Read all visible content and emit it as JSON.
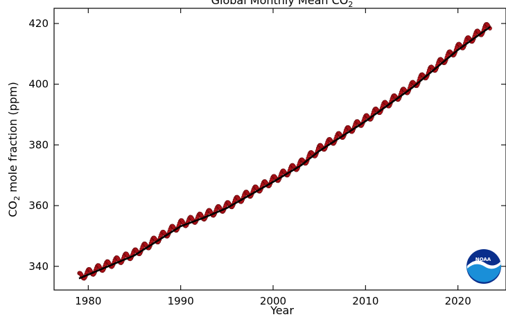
{
  "chart_data": {
    "type": "line",
    "title": "Global Monthly Mean CO",
    "title_subscript": "2",
    "xlabel": "Year",
    "ylabel_prefix": "CO",
    "ylabel_subscript": "2",
    "ylabel_suffix": " mole fraction (ppm)",
    "xlim": [
      1976.3,
      2025.2
    ],
    "ylim": [
      332.2,
      425
    ],
    "x_ticks": [
      1980,
      1990,
      2000,
      2010,
      2020
    ],
    "y_ticks": [
      340,
      360,
      380,
      400,
      420
    ],
    "grid": false,
    "series": [
      {
        "kind": "monthly-markers",
        "color": "#c0141c",
        "trend_points": [
          [
            1979,
            336.5
          ],
          [
            1985,
            344.2
          ],
          [
            1990,
            353.9
          ],
          [
            1992.5,
            356.6
          ],
          [
            1995,
            359.8
          ],
          [
            2000,
            368.4
          ],
          [
            2003,
            373.8
          ],
          [
            2005,
            378.6
          ],
          [
            2010,
            388.4
          ],
          [
            2015,
            399.3
          ],
          [
            2020,
            411.9
          ],
          [
            2023.5,
            419.5
          ]
        ],
        "seasonal_amplitude": 1.2,
        "month_start": 1979.04,
        "month_end": 2023.46
      },
      {
        "kind": "trend-line",
        "color": "#000000",
        "points": [
          [
            1979,
            336.0
          ],
          [
            1985,
            343.6
          ],
          [
            1990,
            353.2
          ],
          [
            1992.5,
            356.0
          ],
          [
            1995,
            359.2
          ],
          [
            2000,
            367.8
          ],
          [
            2003,
            373.2
          ],
          [
            2005,
            378.0
          ],
          [
            2010,
            387.8
          ],
          [
            2015,
            398.7
          ],
          [
            2020,
            411.3
          ],
          [
            2023.5,
            418.9
          ]
        ]
      }
    ]
  },
  "logo": {
    "text": "NOAA",
    "colors": {
      "sky": "#0a2f8c",
      "water": "#1a8fd8",
      "gull": "#ffffff"
    }
  }
}
